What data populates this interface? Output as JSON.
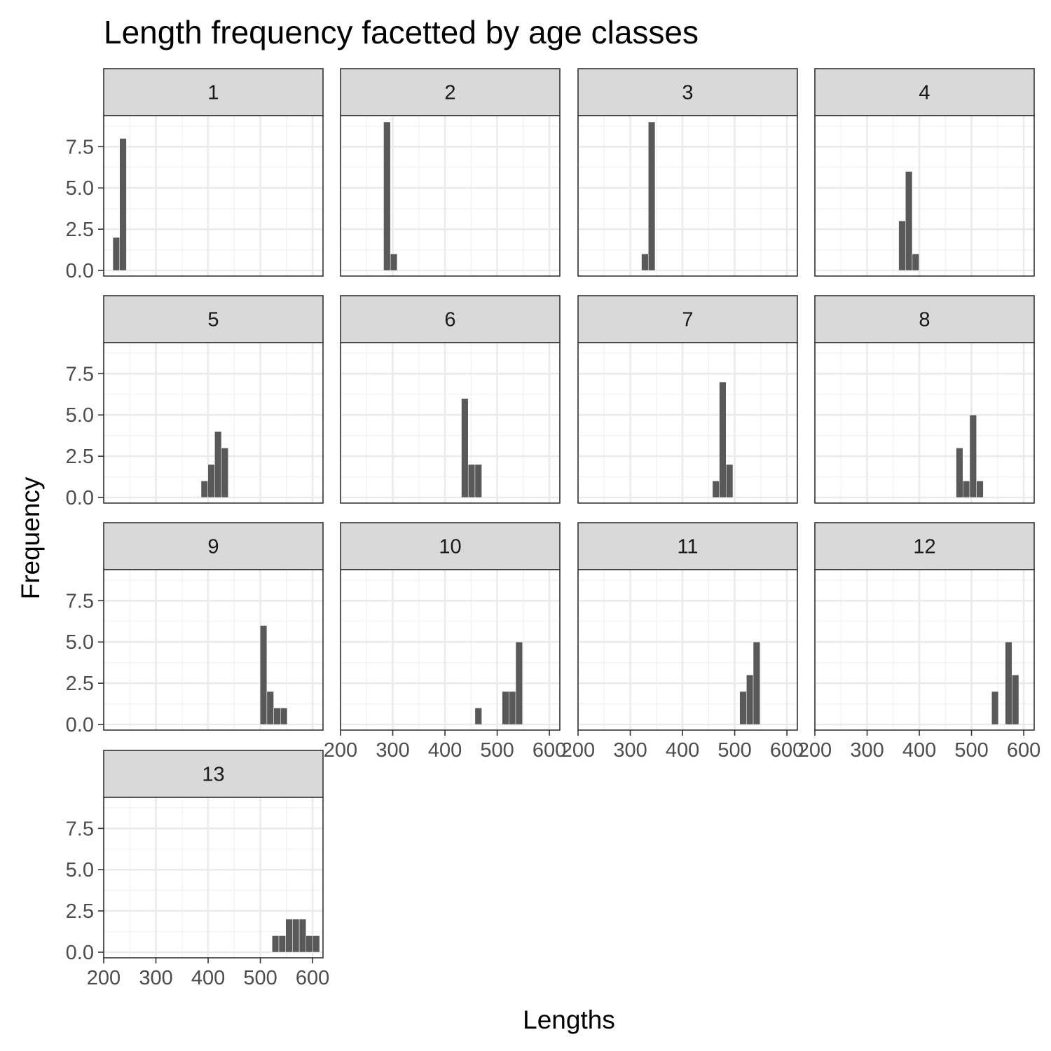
{
  "chart_data": {
    "type": "bar",
    "chart_kind": "faceted histogram",
    "title": "Length frequency facetted by age classes",
    "xlabel": "Lengths",
    "ylabel": "Frequency",
    "xlim": [
      200,
      620
    ],
    "ylim": [
      0,
      9
    ],
    "x_ticks": [
      "200",
      "300",
      "400",
      "500",
      "600"
    ],
    "y_ticks": [
      "0.0",
      "2.5",
      "5.0",
      "7.5"
    ],
    "bin_width": 13,
    "grid": true,
    "bar_color": "#595959",
    "strip_color": "#d9d9d9",
    "facets": [
      {
        "label": "1",
        "bins": [
          {
            "x": 224,
            "count": 2
          },
          {
            "x": 237,
            "count": 8
          }
        ]
      },
      {
        "label": "2",
        "bins": [
          {
            "x": 289,
            "count": 9
          },
          {
            "x": 302,
            "count": 1
          }
        ]
      },
      {
        "label": "3",
        "bins": [
          {
            "x": 328,
            "count": 1
          },
          {
            "x": 341,
            "count": 9
          }
        ]
      },
      {
        "label": "4",
        "bins": [
          {
            "x": 367,
            "count": 3
          },
          {
            "x": 380,
            "count": 6
          },
          {
            "x": 393,
            "count": 1
          }
        ]
      },
      {
        "label": "5",
        "bins": [
          {
            "x": 393,
            "count": 1
          },
          {
            "x": 406,
            "count": 2
          },
          {
            "x": 419,
            "count": 4
          },
          {
            "x": 432,
            "count": 3
          }
        ]
      },
      {
        "label": "6",
        "bins": [
          {
            "x": 438,
            "count": 6
          },
          {
            "x": 451,
            "count": 2
          },
          {
            "x": 464,
            "count": 2
          }
        ]
      },
      {
        "label": "7",
        "bins": [
          {
            "x": 464,
            "count": 1
          },
          {
            "x": 477,
            "count": 7
          },
          {
            "x": 490,
            "count": 2
          }
        ]
      },
      {
        "label": "8",
        "bins": [
          {
            "x": 477,
            "count": 3
          },
          {
            "x": 490,
            "count": 1
          },
          {
            "x": 503,
            "count": 5
          },
          {
            "x": 516,
            "count": 1
          }
        ]
      },
      {
        "label": "9",
        "bins": [
          {
            "x": 506,
            "count": 6
          },
          {
            "x": 519,
            "count": 2
          },
          {
            "x": 532,
            "count": 1
          },
          {
            "x": 545,
            "count": 1
          }
        ]
      },
      {
        "label": "10",
        "bins": [
          {
            "x": 464,
            "count": 1
          },
          {
            "x": 516,
            "count": 2
          },
          {
            "x": 529,
            "count": 2
          },
          {
            "x": 542,
            "count": 5
          }
        ]
      },
      {
        "label": "11",
        "bins": [
          {
            "x": 516,
            "count": 2
          },
          {
            "x": 529,
            "count": 3
          },
          {
            "x": 542,
            "count": 5
          }
        ]
      },
      {
        "label": "12",
        "bins": [
          {
            "x": 545,
            "count": 2
          },
          {
            "x": 571,
            "count": 5
          },
          {
            "x": 584,
            "count": 3
          }
        ]
      },
      {
        "label": "13",
        "bins": [
          {
            "x": 529,
            "count": 1
          },
          {
            "x": 542,
            "count": 1
          },
          {
            "x": 555,
            "count": 2
          },
          {
            "x": 568,
            "count": 2
          },
          {
            "x": 581,
            "count": 2
          },
          {
            "x": 594,
            "count": 1
          },
          {
            "x": 607,
            "count": 1
          }
        ]
      }
    ]
  }
}
